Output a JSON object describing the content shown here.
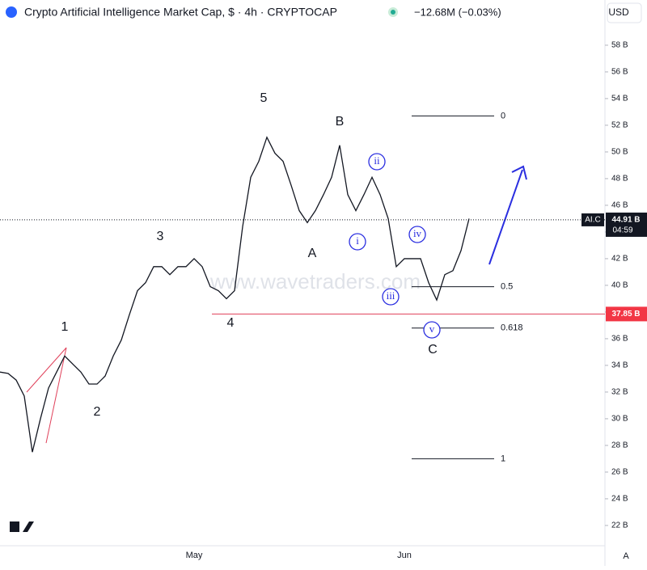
{
  "header": {
    "title": "Crypto Artificial Intelligence Market Cap, $ · 4h · CRYPTOCAP",
    "change": "−12.68M (−0.03%)",
    "currency": "USD"
  },
  "watermark": "www.wavetraders.com",
  "chart_data": {
    "type": "line",
    "color": "#131722",
    "categories": [
      null,
      null,
      null,
      null,
      null,
      null,
      null,
      null,
      null,
      null,
      null,
      null,
      null,
      null,
      null,
      null,
      null,
      null,
      null,
      null,
      null,
      null,
      null,
      null,
      "May",
      null,
      null,
      null,
      null,
      null,
      null,
      null,
      null,
      null,
      null,
      null,
      null,
      null,
      null,
      null,
      null,
      null,
      null,
      null,
      null,
      null,
      null,
      null,
      null,
      null,
      "Jun",
      null,
      null,
      null,
      null,
      null,
      null,
      null,
      null
    ],
    "values": [
      33.5,
      33.4,
      32.9,
      31.7,
      27.5,
      30.0,
      32.3,
      33.5,
      34.7,
      34.1,
      33.5,
      32.6,
      32.6,
      33.2,
      34.7,
      35.9,
      37.8,
      39.6,
      40.2,
      41.4,
      41.4,
      40.8,
      41.4,
      41.4,
      42.0,
      41.4,
      39.9,
      39.6,
      39.0,
      39.6,
      44.4,
      48.1,
      49.3,
      51.1,
      49.9,
      49.3,
      47.5,
      45.6,
      44.7,
      45.6,
      46.8,
      48.1,
      50.5,
      46.8,
      45.6,
      46.8,
      48.1,
      46.8,
      45.0,
      41.4,
      42.0,
      42.0,
      42.0,
      40.2,
      38.9,
      40.8,
      41.1,
      42.6,
      45.0
    ],
    "ylim": [
      20.48,
      61.39
    ],
    "yticks": [
      {
        "value": 22,
        "label": "22 B"
      },
      {
        "value": 24,
        "label": "24 B"
      },
      {
        "value": 26,
        "label": "26 B"
      },
      {
        "value": 28,
        "label": "28 B"
      },
      {
        "value": 30,
        "label": "30 B"
      },
      {
        "value": 32,
        "label": "32 B"
      },
      {
        "value": 34,
        "label": "34 B"
      },
      {
        "value": 36,
        "label": "36 B"
      },
      {
        "value": 38,
        "label": "38 B"
      },
      {
        "value": 40,
        "label": "40 B"
      },
      {
        "value": 42,
        "label": "42 B"
      },
      {
        "value": 44,
        "label": "44 B"
      },
      {
        "value": 46,
        "label": "46 B"
      },
      {
        "value": 48,
        "label": "48 B"
      },
      {
        "value": 50,
        "label": "50 B"
      },
      {
        "value": 52,
        "label": "52 B"
      },
      {
        "value": 54,
        "label": "54 B"
      },
      {
        "value": 56,
        "label": "56 B"
      },
      {
        "value": 58,
        "label": "58 B"
      }
    ],
    "last_price": {
      "value": 44.91,
      "label": "44.91 B",
      "symbol": "AI.C",
      "countdown": "04:59"
    },
    "support": {
      "value": 37.85,
      "label": "37.85 B"
    },
    "fib_levels": [
      {
        "value": 52.7,
        "label": "0"
      },
      {
        "value": 39.9,
        "label": "0.5"
      },
      {
        "value": 36.8,
        "label": "0.618"
      },
      {
        "value": 27.0,
        "label": "1"
      }
    ],
    "annotations": [
      "1",
      "2",
      "3",
      "4",
      "5",
      "A",
      "B",
      "C",
      "i",
      "ii",
      "iii",
      "iv",
      "v"
    ]
  }
}
